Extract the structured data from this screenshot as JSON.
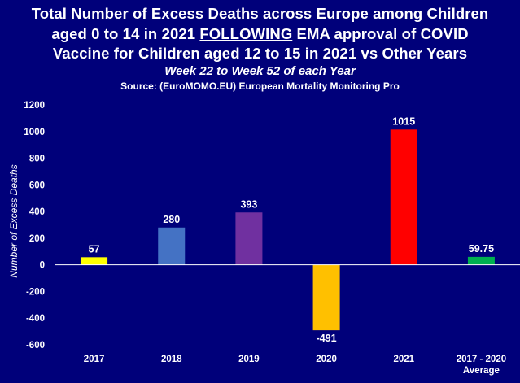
{
  "chart_data": {
    "type": "bar",
    "title_lines": [
      "Total Number of Excess Deaths across Europe among Children",
      "aged 0 to 14 in 2021 FOLLOWING EMA approval of COVID",
      "Vaccine for Children aged 12 to 15 in 2021 vs Other Years"
    ],
    "title_emphasis": "FOLLOWING",
    "subtitle": "Week 22 to Week 52 of each Year",
    "source": "Source: (EuroMOMO.EU) European Mortality Monitoring Pro",
    "categories": [
      [
        "2017"
      ],
      [
        "2018"
      ],
      [
        "2019"
      ],
      [
        "2020"
      ],
      [
        "2021"
      ],
      [
        "2017 - 2020",
        "Average"
      ]
    ],
    "values": [
      57,
      280,
      393,
      -491,
      1015,
      59.75
    ],
    "value_labels": [
      "57",
      "280",
      "393",
      "-491",
      "1015",
      "59.75"
    ],
    "colors": [
      "#ffff00",
      "#4472c4",
      "#7030a0",
      "#ffc000",
      "#ff0000",
      "#00b050"
    ],
    "ylabel": "Number of Excess Deaths",
    "xlabel": "",
    "ylim": [
      -600,
      1200
    ],
    "yticks": [
      -600,
      -400,
      -200,
      0,
      200,
      400,
      600,
      800,
      1000,
      1200
    ],
    "ytick_labels": [
      "-600",
      "-400",
      "-200",
      "0",
      "200",
      "400",
      "600",
      "800",
      "1000",
      "1200"
    ],
    "grid": false,
    "legend": "none"
  }
}
